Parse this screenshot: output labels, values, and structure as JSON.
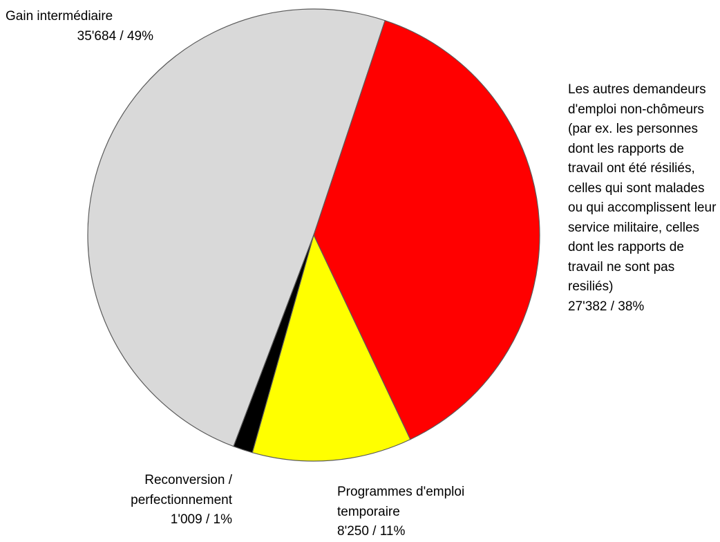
{
  "chart_data": {
    "type": "pie",
    "categories": [
      "Gain intermédiaire",
      "Les autres demandeurs d'emploi non-chômeurs (par ex. les personnes dont les rapports de travail ont été résiliés, celles qui sont malades ou qui accomplissent leur service militaire, celles dont les rapports de travail ne sont pas resiliés)",
      "Programmes d'emploi temporaire",
      "Reconversion / perfectionnement"
    ],
    "values": [
      35684,
      27382,
      8250,
      1009
    ],
    "value_labels": [
      "35'684  / 49%",
      "27'382  / 38%",
      "8'250  / 11%",
      "1'009  / 1%"
    ],
    "colors": [
      "#d9d9d9",
      "#ff0000",
      "#ffff00",
      "#000000"
    ]
  }
}
